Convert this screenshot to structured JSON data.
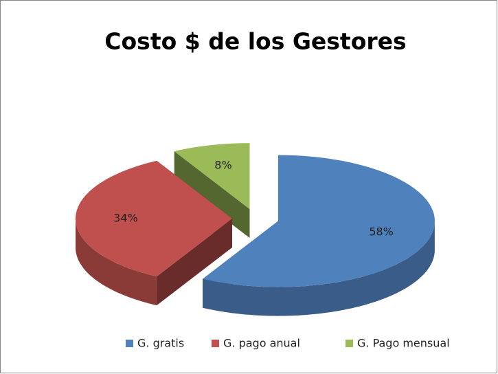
{
  "chart_data": {
    "type": "pie",
    "title": "Costo $ de los Gestores",
    "categories": [
      "G. gratis",
      "G. pago anual",
      "G. Pago mensual"
    ],
    "values": [
      58,
      34,
      8
    ],
    "value_labels": [
      "58%",
      "34%",
      "8%"
    ],
    "colors": [
      "#4f81bd",
      "#c0504d",
      "#9bbb59"
    ],
    "legend": "bottom"
  }
}
